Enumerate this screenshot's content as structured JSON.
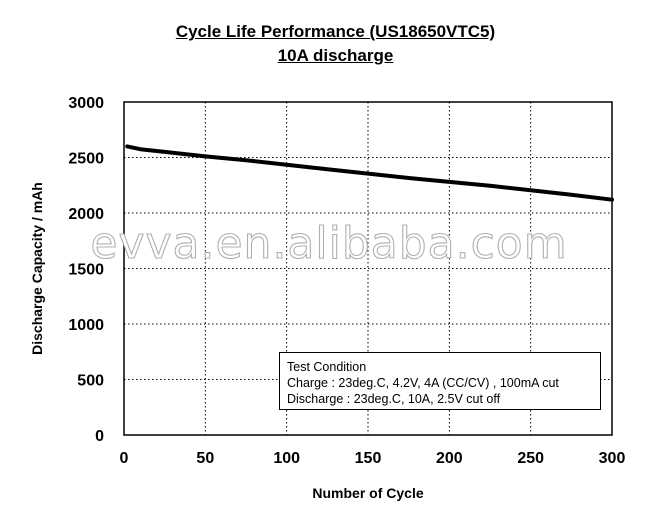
{
  "title": "Cycle Life Performance (US18650VTC5)",
  "subtitle": "10A discharge",
  "watermark": "evva.en.alibaba.com",
  "test_condition": {
    "heading": "Test Condition",
    "charge": "Charge : 23deg.C, 4.2V, 4A (CC/CV) , 100mA cut",
    "discharge": "Discharge : 23deg.C, 10A, 2.5V cut off"
  },
  "chart_data": {
    "type": "line",
    "title": "Cycle Life Performance (US18650VTC5)",
    "subtitle": "10A discharge",
    "xlabel": "Number of Cycle",
    "ylabel": "Discharge Capacity / mAh",
    "xlim": [
      0,
      300
    ],
    "ylim": [
      0,
      3000
    ],
    "xticks": [
      0,
      50,
      100,
      150,
      200,
      250,
      300
    ],
    "yticks": [
      0,
      500,
      1000,
      1500,
      2000,
      2500,
      3000
    ],
    "grid": true,
    "grid_style": "dotted",
    "series": [
      {
        "color": "#000000",
        "x": [
          2,
          10,
          25,
          50,
          75,
          100,
          125,
          150,
          175,
          200,
          225,
          250,
          275,
          300
        ],
        "y": [
          2600,
          2575,
          2550,
          2510,
          2475,
          2435,
          2395,
          2355,
          2315,
          2280,
          2245,
          2205,
          2165,
          2120
        ]
      }
    ],
    "annotation_box": "Test Condition"
  }
}
